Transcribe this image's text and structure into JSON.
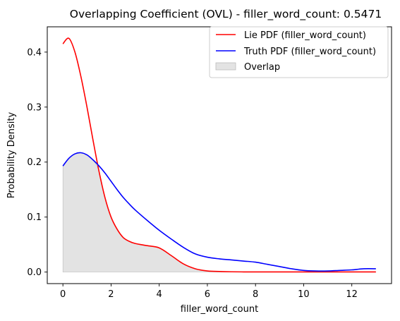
{
  "chart_data": {
    "type": "line",
    "title": "Overlapping Coefficient (OVL) - filler_word_count: 0.5471",
    "xlabel": "filler_word_count",
    "ylabel": "Probability Density",
    "xlim": [
      -0.65,
      13.65
    ],
    "ylim": [
      -0.021,
      0.446
    ],
    "xticks": [
      0,
      2,
      4,
      6,
      8,
      10,
      12
    ],
    "yticks": [
      0.0,
      0.1,
      0.2,
      0.3,
      0.4
    ],
    "ytick_labels": [
      "0.0",
      "0.1",
      "0.2",
      "0.3",
      "0.4"
    ],
    "grid": false,
    "legend_position": "top-right",
    "x": [
      0,
      0.25,
      0.5,
      0.75,
      1,
      1.25,
      1.5,
      1.75,
      2,
      2.25,
      2.5,
      2.75,
      3,
      3.5,
      4,
      4.5,
      5,
      5.5,
      6,
      6.5,
      7,
      7.5,
      8,
      8.5,
      9,
      9.5,
      10,
      10.5,
      11,
      11.5,
      12,
      12.5,
      13
    ],
    "series": [
      {
        "name": "Lie PDF (filler_word_count)",
        "color": "#ff0000",
        "values": [
          0.415,
          0.425,
          0.4,
          0.355,
          0.3,
          0.24,
          0.183,
          0.135,
          0.1,
          0.078,
          0.063,
          0.056,
          0.052,
          0.048,
          0.044,
          0.03,
          0.015,
          0.006,
          0.002,
          0.001,
          0.0005,
          0.0003,
          0.0002,
          0.0002,
          0.0002,
          0.0002,
          0.0002,
          0.0002,
          0.0002,
          0.0002,
          0.0002,
          0.0002,
          0.0002
        ]
      },
      {
        "name": "Truth PDF (filler_word_count)",
        "color": "#0000ff",
        "values": [
          0.193,
          0.207,
          0.215,
          0.217,
          0.213,
          0.204,
          0.193,
          0.18,
          0.165,
          0.15,
          0.136,
          0.124,
          0.113,
          0.094,
          0.076,
          0.06,
          0.045,
          0.033,
          0.027,
          0.024,
          0.022,
          0.02,
          0.018,
          0.014,
          0.01,
          0.006,
          0.003,
          0.002,
          0.002,
          0.003,
          0.004,
          0.006,
          0.006
        ]
      }
    ],
    "fill": {
      "name": "Overlap",
      "color": "#c8c8c8"
    }
  }
}
